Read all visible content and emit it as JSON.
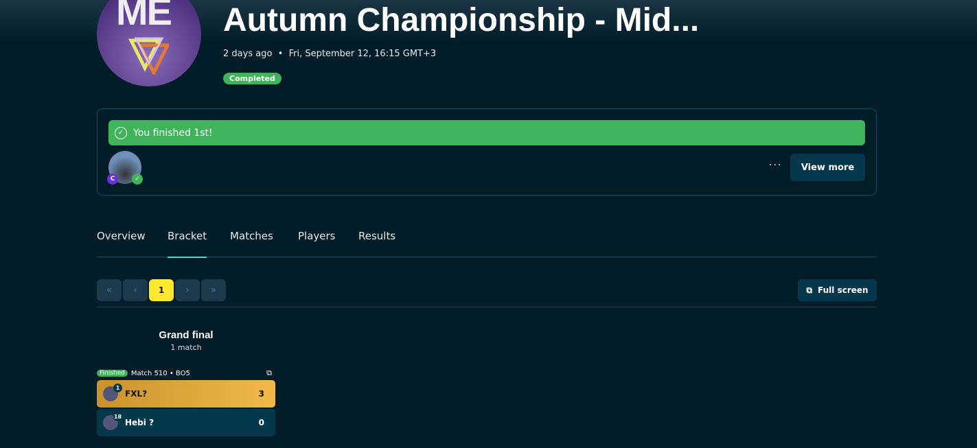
{
  "header": {
    "logo_text": "ME",
    "title": "Autumn Championship - Mid...",
    "relative_time": "2 days ago",
    "separator": "•",
    "date": "Fri, September 12, 16:15 GMT+3",
    "status": "Completed"
  },
  "result_card": {
    "message": "You finished 1st!",
    "avatar_badge": "C",
    "more_icon": "···",
    "view_more": "View more"
  },
  "tabs": [
    {
      "label": "Overview"
    },
    {
      "label": "Bracket",
      "active": true
    },
    {
      "label": "Matches"
    },
    {
      "label": "Players"
    },
    {
      "label": "Results"
    }
  ],
  "pager": {
    "first": "«",
    "prev": "‹",
    "current": "1",
    "next": "›",
    "last": "»"
  },
  "full_screen": "Full screen",
  "bracket": {
    "round_title": "Grand final",
    "round_sub": "1 match",
    "match": {
      "status": "Finished",
      "label": "Match 510 • BO5",
      "players": [
        {
          "seed": "1",
          "name": "FXL?",
          "score": "3",
          "winner": true
        },
        {
          "seed": "18",
          "name": "Hebi ?",
          "score": "0"
        }
      ]
    }
  },
  "colors": {
    "background": "#021d28",
    "success": "#3fb45a",
    "accent": "#2ee6c9",
    "pager_active": "#ffe82e",
    "winner_row": "#f2b84a"
  }
}
